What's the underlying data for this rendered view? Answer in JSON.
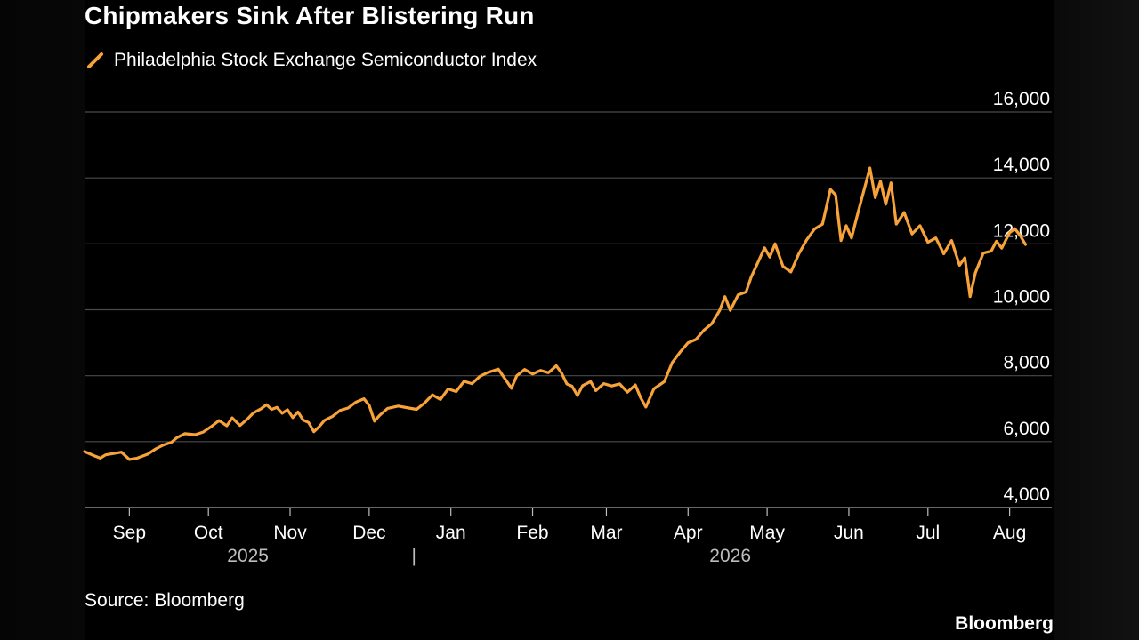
{
  "chart_data": {
    "type": "line",
    "title": "Chipmakers Sink After Blistering Run",
    "series": [
      {
        "name": "Philadelphia Stock Exchange Semiconductor Index",
        "color": "#F7A33A",
        "points": [
          [
            "2025-08-29",
            5700
          ],
          [
            "2025-09-02",
            5560
          ],
          [
            "2025-09-04",
            5500
          ],
          [
            "2025-09-06",
            5600
          ],
          [
            "2025-09-09",
            5640
          ],
          [
            "2025-09-12",
            5680
          ],
          [
            "2025-09-15",
            5460
          ],
          [
            "2025-09-18",
            5500
          ],
          [
            "2025-09-22",
            5620
          ],
          [
            "2025-09-25",
            5780
          ],
          [
            "2025-09-28",
            5900
          ],
          [
            "2025-10-01",
            5980
          ],
          [
            "2025-10-03",
            6120
          ],
          [
            "2025-10-06",
            6240
          ],
          [
            "2025-10-10",
            6210
          ],
          [
            "2025-10-13",
            6290
          ],
          [
            "2025-10-16",
            6450
          ],
          [
            "2025-10-19",
            6640
          ],
          [
            "2025-10-22",
            6480
          ],
          [
            "2025-10-24",
            6720
          ],
          [
            "2025-10-27",
            6490
          ],
          [
            "2025-10-30",
            6700
          ],
          [
            "2025-11-01",
            6870
          ],
          [
            "2025-11-04",
            7000
          ],
          [
            "2025-11-06",
            7120
          ],
          [
            "2025-11-08",
            6980
          ],
          [
            "2025-11-10",
            7040
          ],
          [
            "2025-11-12",
            6860
          ],
          [
            "2025-11-14",
            6970
          ],
          [
            "2025-11-16",
            6730
          ],
          [
            "2025-11-18",
            6900
          ],
          [
            "2025-11-20",
            6650
          ],
          [
            "2025-11-22",
            6580
          ],
          [
            "2025-11-24",
            6300
          ],
          [
            "2025-11-26",
            6450
          ],
          [
            "2025-11-28",
            6640
          ],
          [
            "2025-12-01",
            6760
          ],
          [
            "2025-12-04",
            6950
          ],
          [
            "2025-12-07",
            7020
          ],
          [
            "2025-12-10",
            7200
          ],
          [
            "2025-12-13",
            7300
          ],
          [
            "2025-12-15",
            7100
          ],
          [
            "2025-12-17",
            6620
          ],
          [
            "2025-12-19",
            6800
          ],
          [
            "2025-12-22",
            7010
          ],
          [
            "2025-12-26",
            7080
          ],
          [
            "2025-12-30",
            7020
          ],
          [
            "2026-01-02",
            6980
          ],
          [
            "2026-01-05",
            7170
          ],
          [
            "2026-01-08",
            7420
          ],
          [
            "2026-01-11",
            7280
          ],
          [
            "2026-01-14",
            7600
          ],
          [
            "2026-01-17",
            7520
          ],
          [
            "2026-01-20",
            7830
          ],
          [
            "2026-01-23",
            7760
          ],
          [
            "2026-01-26",
            7980
          ],
          [
            "2026-01-29",
            8100
          ],
          [
            "2026-02-02",
            8200
          ],
          [
            "2026-02-05",
            7850
          ],
          [
            "2026-02-07",
            7620
          ],
          [
            "2026-02-09",
            8000
          ],
          [
            "2026-02-12",
            8190
          ],
          [
            "2026-02-15",
            8050
          ],
          [
            "2026-02-18",
            8160
          ],
          [
            "2026-02-21",
            8090
          ],
          [
            "2026-02-24",
            8300
          ],
          [
            "2026-02-26",
            8080
          ],
          [
            "2026-02-28",
            7750
          ],
          [
            "2026-03-02",
            7680
          ],
          [
            "2026-03-04",
            7400
          ],
          [
            "2026-03-06",
            7700
          ],
          [
            "2026-03-09",
            7820
          ],
          [
            "2026-03-11",
            7550
          ],
          [
            "2026-03-14",
            7760
          ],
          [
            "2026-03-17",
            7690
          ],
          [
            "2026-03-20",
            7750
          ],
          [
            "2026-03-23",
            7500
          ],
          [
            "2026-03-26",
            7720
          ],
          [
            "2026-03-28",
            7330
          ],
          [
            "2026-03-30",
            7050
          ],
          [
            "2026-04-02",
            7600
          ],
          [
            "2026-04-06",
            7820
          ],
          [
            "2026-04-09",
            8400
          ],
          [
            "2026-04-12",
            8720
          ],
          [
            "2026-04-15",
            9000
          ],
          [
            "2026-04-18",
            9100
          ],
          [
            "2026-04-21",
            9380
          ],
          [
            "2026-04-24",
            9580
          ],
          [
            "2026-04-27",
            9980
          ],
          [
            "2026-04-29",
            10400
          ],
          [
            "2026-05-01",
            9980
          ],
          [
            "2026-05-04",
            10450
          ],
          [
            "2026-05-07",
            10540
          ],
          [
            "2026-05-09",
            11000
          ],
          [
            "2026-05-11",
            11350
          ],
          [
            "2026-05-14",
            11880
          ],
          [
            "2026-05-16",
            11600
          ],
          [
            "2026-05-18",
            12000
          ],
          [
            "2026-05-21",
            11320
          ],
          [
            "2026-05-24",
            11150
          ],
          [
            "2026-05-27",
            11700
          ],
          [
            "2026-05-30",
            12120
          ],
          [
            "2026-06-02",
            12450
          ],
          [
            "2026-06-05",
            12600
          ],
          [
            "2026-06-08",
            13650
          ],
          [
            "2026-06-10",
            13480
          ],
          [
            "2026-06-12",
            12100
          ],
          [
            "2026-06-14",
            12550
          ],
          [
            "2026-06-16",
            12180
          ],
          [
            "2026-06-18",
            12800
          ],
          [
            "2026-06-20",
            13400
          ],
          [
            "2026-06-23",
            14300
          ],
          [
            "2026-06-25",
            13400
          ],
          [
            "2026-06-27",
            13900
          ],
          [
            "2026-06-29",
            13200
          ],
          [
            "2026-07-01",
            13850
          ],
          [
            "2026-07-03",
            12600
          ],
          [
            "2026-07-06",
            12950
          ],
          [
            "2026-07-09",
            12300
          ],
          [
            "2026-07-12",
            12550
          ],
          [
            "2026-07-15",
            12050
          ],
          [
            "2026-07-18",
            12180
          ],
          [
            "2026-07-21",
            11700
          ],
          [
            "2026-07-24",
            12100
          ],
          [
            "2026-07-27",
            11350
          ],
          [
            "2026-07-29",
            11580
          ],
          [
            "2026-07-31",
            10400
          ],
          [
            "2026-08-02",
            11120
          ],
          [
            "2026-08-05",
            11720
          ],
          [
            "2026-08-08",
            11780
          ],
          [
            "2026-08-10",
            12080
          ],
          [
            "2026-08-12",
            11870
          ],
          [
            "2026-08-15",
            12340
          ],
          [
            "2026-08-17",
            12460
          ],
          [
            "2026-08-19",
            12250
          ],
          [
            "2026-08-21",
            11980
          ]
        ]
      }
    ],
    "x_range": [
      "2025-08-29",
      "2026-08-31"
    ],
    "x_ticks": [
      "Sep",
      "Oct",
      "Nov",
      "Dec",
      "Jan",
      "Feb",
      "Mar",
      "Apr",
      "May",
      "Jun",
      "Jul",
      "Aug"
    ],
    "x_tick_dates": [
      "2025-09-15",
      "2025-10-15",
      "2025-11-15",
      "2025-12-15",
      "2026-01-15",
      "2026-02-15",
      "2026-03-15",
      "2026-04-15",
      "2026-05-15",
      "2026-06-15",
      "2026-07-15",
      "2026-08-15"
    ],
    "year_labels": [
      "2025",
      "|",
      "2026"
    ],
    "y_ticks": [
      "16,000",
      "14,000",
      "12,000",
      "10,000",
      "8,000",
      "6,000",
      "4,000"
    ],
    "ylim": [
      4000,
      16000
    ],
    "grid": true,
    "legend": "top-left"
  },
  "source": "Source: Bloomberg",
  "brand": "Bloomberg"
}
